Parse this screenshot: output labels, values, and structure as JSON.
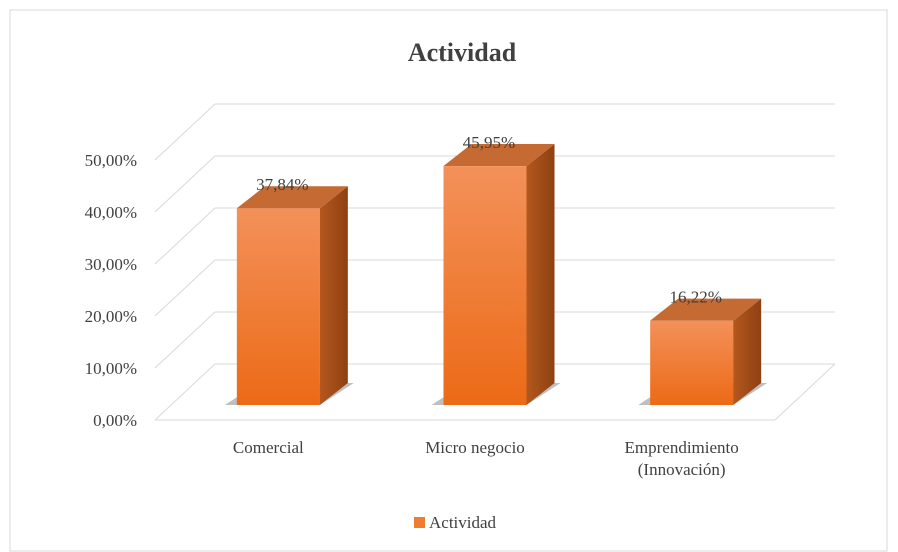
{
  "chart_data": {
    "type": "bar3d",
    "title": "Actividad",
    "categories": [
      "Comercial",
      "Micro negocio",
      "Emprendimiento (Innovación)"
    ],
    "series": [
      {
        "name": "Actividad",
        "color": "#ed7d31",
        "values": [
          37.84,
          45.95,
          16.22
        ],
        "value_labels": [
          "37,84%",
          "45,95%",
          "16,22%"
        ]
      }
    ],
    "ylim": [
      0,
      50
    ],
    "yticks": [
      {
        "value": 0,
        "label": "0,00%"
      },
      {
        "value": 10,
        "label": "10,00%"
      },
      {
        "value": 20,
        "label": "20,00%"
      },
      {
        "value": 30,
        "label": "30,00%"
      },
      {
        "value": 40,
        "label": "40,00%"
      },
      {
        "value": 50,
        "label": "50,00%"
      }
    ],
    "grid": true,
    "legend": "bottom"
  }
}
